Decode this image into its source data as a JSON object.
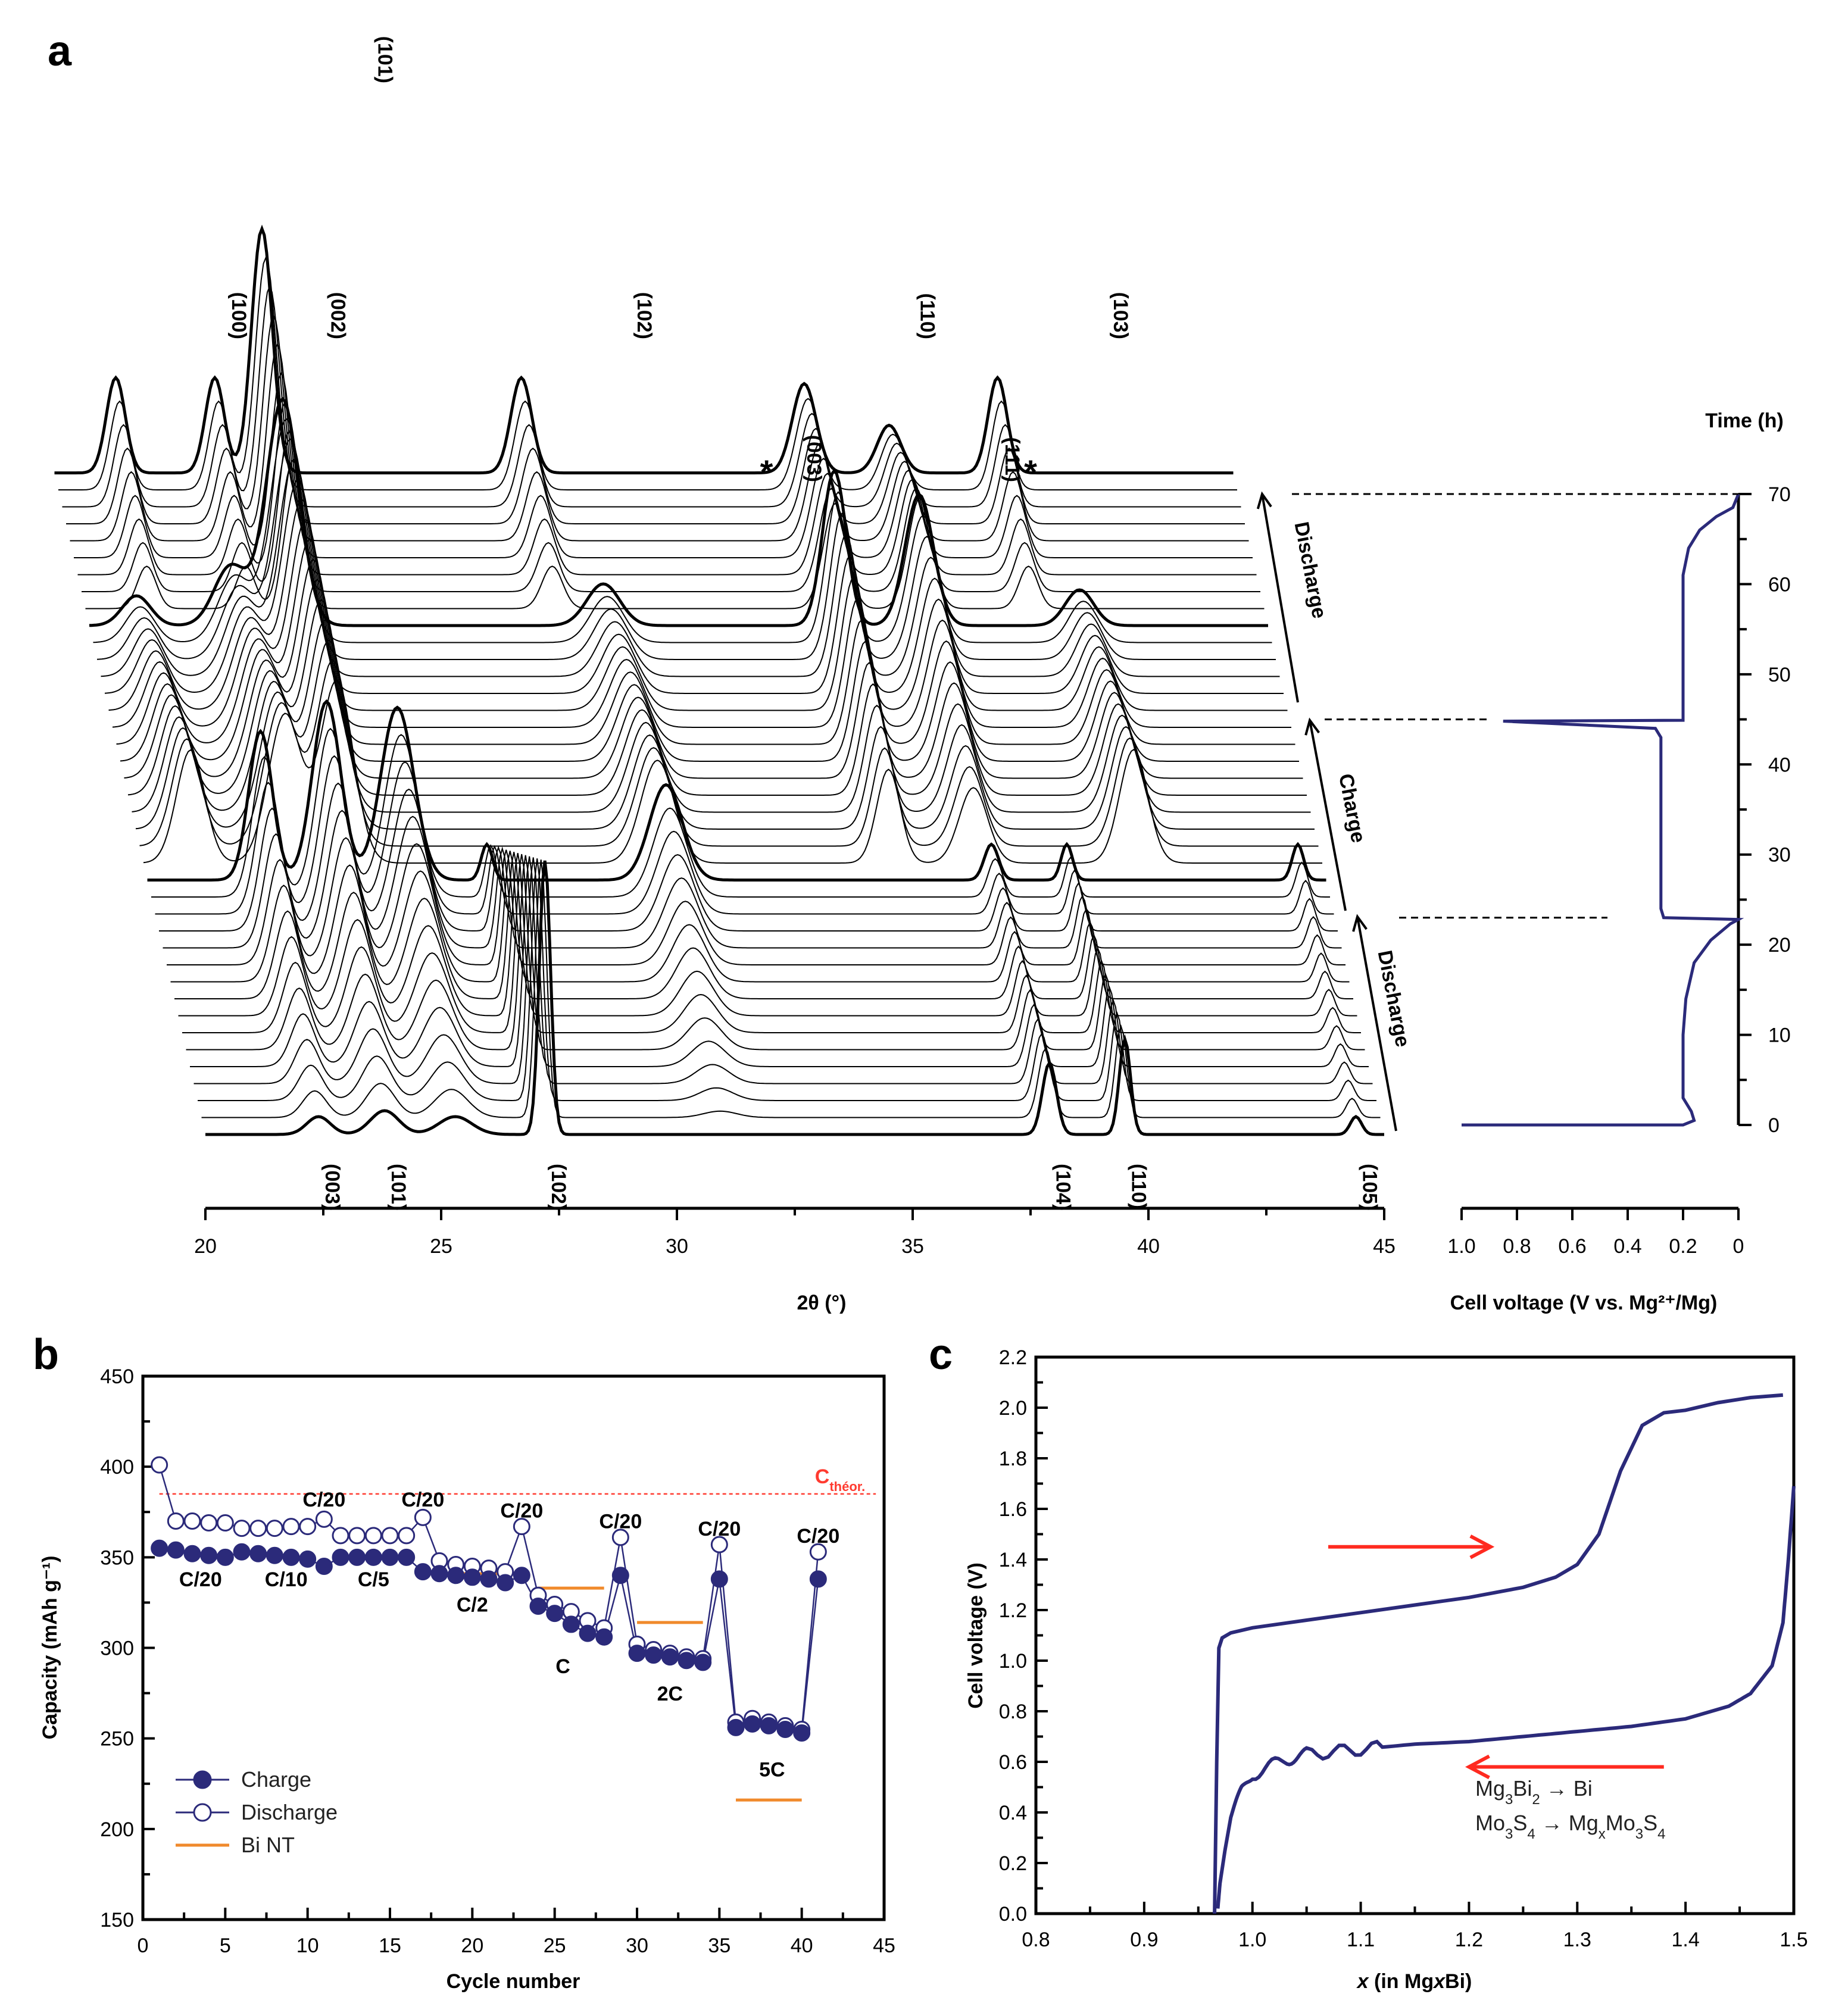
{
  "panels": {
    "a": "a",
    "b": "b",
    "c": "c"
  },
  "colors": {
    "curve": "#2b2a7a",
    "binet": "#f08a2c",
    "theory": "#ff3b30",
    "arrow": "#ff2a20",
    "xrd": "#000000"
  },
  "chart_data": [
    {
      "id": "a",
      "type": "line",
      "title": "",
      "xlabel": "2θ (°)",
      "xlim": [
        20,
        45
      ],
      "xticks": [
        "20",
        "25",
        "30",
        "35",
        "40",
        "45"
      ],
      "waterfall_series_count": 40,
      "bottom_peaks": [
        {
          "label": "(003)",
          "x": 22.4
        },
        {
          "label": "(101)",
          "x": 23.8
        },
        {
          "label": "(102)",
          "x": 27.2
        },
        {
          "label": "(104)",
          "x": 37.9
        },
        {
          "label": "(110)",
          "x": 39.5
        },
        {
          "label": "(105)",
          "x": 44.4
        }
      ],
      "top_peaks": [
        {
          "label": "(100)",
          "x": 21.3
        },
        {
          "label": "(002)",
          "x": 23.4
        },
        {
          "label": "(101)",
          "x": 24.4
        },
        {
          "label": "(102)",
          "x": 29.9
        },
        {
          "label": "(003)",
          "x": 33.5
        },
        {
          "label": "(110)",
          "x": 35.9
        },
        {
          "label": "(111)",
          "x": 37.7
        },
        {
          "label": "(103)",
          "x": 40.0
        }
      ],
      "impurity_marks": [
        {
          "label": "*",
          "x": 33.1
        },
        {
          "label": "*",
          "x": 38.7
        }
      ],
      "segments": [
        "Discharge",
        "Charge",
        "Discharge"
      ],
      "side_plot": {
        "xlabel": "Cell voltage (V vs. Mg²⁺/Mg)",
        "ylabel": "Time (h)",
        "xlim": [
          1.0,
          0.0
        ],
        "ylim": [
          0,
          70
        ],
        "xticks": [
          "1.0",
          "0.8",
          "0.6",
          "0.4",
          "0.2",
          "0"
        ],
        "yticks": [
          "0",
          "10",
          "20",
          "30",
          "40",
          "50",
          "60",
          "70"
        ],
        "series": [
          {
            "name": "voltage",
            "points": [
              [
                1.0,
                0
              ],
              [
                0.2,
                0
              ],
              [
                0.16,
                0.5
              ],
              [
                0.17,
                1.5
              ],
              [
                0.2,
                3
              ],
              [
                0.2,
                10
              ],
              [
                0.19,
                14
              ],
              [
                0.16,
                18
              ],
              [
                0.1,
                20.5
              ],
              [
                0.03,
                22.3
              ],
              [
                0,
                22.8
              ],
              [
                0.27,
                23
              ],
              [
                0.28,
                24
              ],
              [
                0.28,
                40
              ],
              [
                0.28,
                43
              ],
              [
                0.3,
                44
              ],
              [
                0.85,
                44.8
              ],
              [
                0.2,
                44.9
              ],
              [
                0.2,
                48
              ],
              [
                0.2,
                61
              ],
              [
                0.18,
                64
              ],
              [
                0.14,
                66
              ],
              [
                0.08,
                67.5
              ],
              [
                0.02,
                68.5
              ],
              [
                0,
                70
              ]
            ]
          }
        ],
        "dashed_markers_h": [
          70,
          45,
          23
        ]
      }
    },
    {
      "id": "b",
      "type": "scatter",
      "xlabel": "Cycle number",
      "ylabel": "Capacity (mAh g⁻¹)",
      "xlim": [
        0,
        45
      ],
      "ylim": [
        150,
        450
      ],
      "xticks": [
        "0",
        "5",
        "10",
        "15",
        "20",
        "25",
        "30",
        "35",
        "40",
        "45"
      ],
      "yticks": [
        "150",
        "200",
        "250",
        "300",
        "350",
        "400",
        "450"
      ],
      "theory_line": {
        "label": "C",
        "subscript": "théor.",
        "value": 385
      },
      "series": [
        {
          "name": "Charge",
          "x": [
            1,
            2,
            3,
            4,
            5,
            6,
            7,
            8,
            9,
            10,
            11,
            12,
            13,
            14,
            15,
            16,
            17,
            18,
            19,
            20,
            21,
            22,
            23,
            24,
            25,
            26,
            27,
            28,
            29,
            30,
            31,
            32,
            33,
            34,
            35,
            36,
            37,
            38,
            39,
            40,
            41
          ],
          "y": [
            355,
            354,
            352,
            351,
            350,
            353,
            352,
            351,
            350,
            349,
            345,
            350,
            350,
            350,
            350,
            350,
            342,
            341,
            340,
            339,
            338,
            336,
            340,
            323,
            319,
            313,
            308,
            306,
            340,
            297,
            296,
            295,
            293,
            292,
            338,
            256,
            258,
            257,
            255,
            253,
            338
          ]
        },
        {
          "name": "Discharge",
          "x": [
            1,
            2,
            3,
            4,
            5,
            6,
            7,
            8,
            9,
            10,
            11,
            12,
            13,
            14,
            15,
            16,
            17,
            18,
            19,
            20,
            21,
            22,
            23,
            24,
            25,
            26,
            27,
            28,
            29,
            30,
            31,
            32,
            33,
            34,
            35,
            36,
            37,
            38,
            39,
            40,
            41
          ],
          "y": [
            401,
            370,
            370,
            369,
            369,
            366,
            366,
            366,
            367,
            367,
            371,
            362,
            362,
            362,
            362,
            362,
            372,
            348,
            346,
            345,
            344,
            342,
            367,
            329,
            324,
            320,
            315,
            311,
            361,
            302,
            299,
            297,
            295,
            294,
            357,
            259,
            261,
            259,
            257,
            255,
            353
          ]
        },
        {
          "name": "Bi NT",
          "segments": [
            [
              12,
              16,
              350
            ],
            [
              18,
              22,
              341
            ],
            [
              24,
              28,
              333
            ],
            [
              30,
              34,
              314
            ],
            [
              36,
              40,
              216
            ]
          ]
        }
      ],
      "rate_labels_top": [
        {
          "text": "C/20",
          "x": 11,
          "y": 378
        },
        {
          "text": "C/20",
          "x": 17,
          "y": 378
        },
        {
          "text": "C/20",
          "x": 23,
          "y": 372
        },
        {
          "text": "C/20",
          "x": 29,
          "y": 366
        },
        {
          "text": "C/20",
          "x": 35,
          "y": 362
        },
        {
          "text": "C/20",
          "x": 41,
          "y": 358
        }
      ],
      "rate_labels_bottom": [
        {
          "text": "C/20",
          "x": 3.5,
          "y": 334
        },
        {
          "text": "C/10",
          "x": 8.7,
          "y": 334
        },
        {
          "text": "C/5",
          "x": 14,
          "y": 334
        },
        {
          "text": "C/2",
          "x": 20,
          "y": 320
        },
        {
          "text": "C",
          "x": 25.5,
          "y": 286
        },
        {
          "text": "2C",
          "x": 32,
          "y": 271
        },
        {
          "text": "5C",
          "x": 38.2,
          "y": 229
        }
      ],
      "legend": [
        {
          "label": "Charge",
          "marker": "filled"
        },
        {
          "label": "Discharge",
          "marker": "open"
        },
        {
          "label": "Bi NT",
          "marker": "line"
        }
      ]
    },
    {
      "id": "c",
      "type": "line",
      "xlabel": "x (in MgxBi)",
      "xlabel_parts": [
        "x",
        " (in Mg",
        "x",
        "Bi)"
      ],
      "ylabel": "Cell voltage (V)",
      "xlim": [
        0.8,
        1.5
      ],
      "ylim": [
        0.0,
        2.2
      ],
      "xticks": [
        "0.8",
        "0.9",
        "1.0",
        "1.1",
        "1.2",
        "1.3",
        "1.4",
        "1.5"
      ],
      "yticks": [
        "0.0",
        "0.2",
        "0.4",
        "0.6",
        "0.8",
        "1.0",
        "1.2",
        "1.4",
        "1.6",
        "1.8",
        "2.0",
        "2.2"
      ],
      "series": [
        {
          "name": "charge",
          "points": [
            [
              0.965,
              0.0
            ],
            [
              0.967,
              0.6
            ],
            [
              0.969,
              1.05
            ],
            [
              0.972,
              1.09
            ],
            [
              0.98,
              1.11
            ],
            [
              1.0,
              1.13
            ],
            [
              1.05,
              1.16
            ],
            [
              1.1,
              1.19
            ],
            [
              1.15,
              1.22
            ],
            [
              1.2,
              1.25
            ],
            [
              1.25,
              1.29
            ],
            [
              1.28,
              1.33
            ],
            [
              1.3,
              1.38
            ],
            [
              1.32,
              1.5
            ],
            [
              1.34,
              1.75
            ],
            [
              1.36,
              1.93
            ],
            [
              1.38,
              1.98
            ],
            [
              1.4,
              1.99
            ],
            [
              1.43,
              2.02
            ],
            [
              1.46,
              2.04
            ],
            [
              1.49,
              2.05
            ]
          ]
        },
        {
          "name": "discharge",
          "points": [
            [
              1.5,
              1.69
            ],
            [
              1.495,
              1.4
            ],
            [
              1.49,
              1.15
            ],
            [
              1.48,
              0.98
            ],
            [
              1.46,
              0.87
            ],
            [
              1.44,
              0.82
            ],
            [
              1.4,
              0.77
            ],
            [
              1.35,
              0.74
            ],
            [
              1.3,
              0.72
            ],
            [
              1.25,
              0.7
            ],
            [
              1.2,
              0.68
            ],
            [
              1.15,
              0.67
            ],
            [
              1.1,
              0.65
            ],
            [
              1.05,
              0.63
            ],
            [
              1.03,
              0.61
            ],
            [
              1.0,
              0.55
            ],
            [
              0.99,
              0.48
            ],
            [
              0.98,
              0.38
            ],
            [
              0.975,
              0.26
            ],
            [
              0.97,
              0.12
            ],
            [
              0.968,
              0.02
            ]
          ]
        }
      ],
      "arrows": [
        {
          "direction": "right",
          "x_from": 1.07,
          "x_to": 1.22,
          "y": 1.45
        },
        {
          "direction": "left",
          "x_from": 1.38,
          "x_to": 1.2,
          "y": 0.58
        }
      ],
      "annotations": [
        {
          "parts": [
            "Mg",
            "3",
            "Bi",
            "2",
            " → Bi"
          ]
        },
        {
          "parts": [
            "Mo",
            "3",
            "S",
            "4",
            " → Mg",
            "x",
            "Mo",
            "3",
            "S",
            "4"
          ]
        }
      ]
    }
  ]
}
